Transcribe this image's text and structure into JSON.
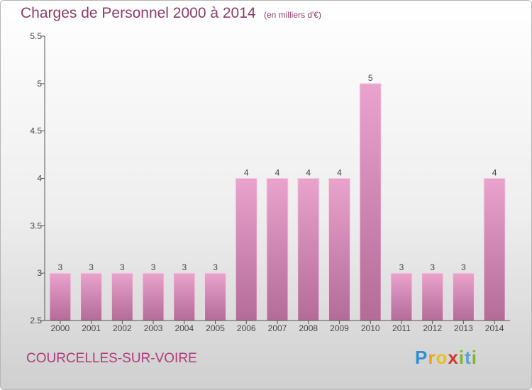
{
  "header": {
    "title": "Charges de Personnel 2000 à 2014",
    "subtitle": "(en milliers d'€)"
  },
  "footer": {
    "location": "COURCELLES-SUR-VOIRE",
    "brand": "Proxiti"
  },
  "colors": {
    "bar_top": "#e9a3cc",
    "bar_bottom": "#b36b98",
    "accent": "#8a3b6a"
  },
  "chart_data": {
    "type": "bar",
    "title": "Charges de Personnel 2000 à 2014",
    "subtitle": "(en milliers d'€)",
    "categories": [
      "2000",
      "2001",
      "2002",
      "2003",
      "2004",
      "2005",
      "2006",
      "2007",
      "2008",
      "2009",
      "2010",
      "2011",
      "2012",
      "2013",
      "2014"
    ],
    "values": [
      3,
      3,
      3,
      3,
      3,
      3,
      4,
      4,
      4,
      4,
      5,
      3,
      3,
      3,
      4
    ],
    "data_labels": [
      "3",
      "3",
      "3",
      "3",
      "3",
      "3",
      "4",
      "4",
      "4",
      "4",
      "5",
      "3",
      "3",
      "3",
      "4"
    ],
    "ylim": [
      2.5,
      5.5
    ],
    "yticks": [
      "2.5",
      "3",
      "3.5",
      "4",
      "4.5",
      "5",
      "5.5"
    ],
    "grid": false,
    "legend": "none"
  }
}
